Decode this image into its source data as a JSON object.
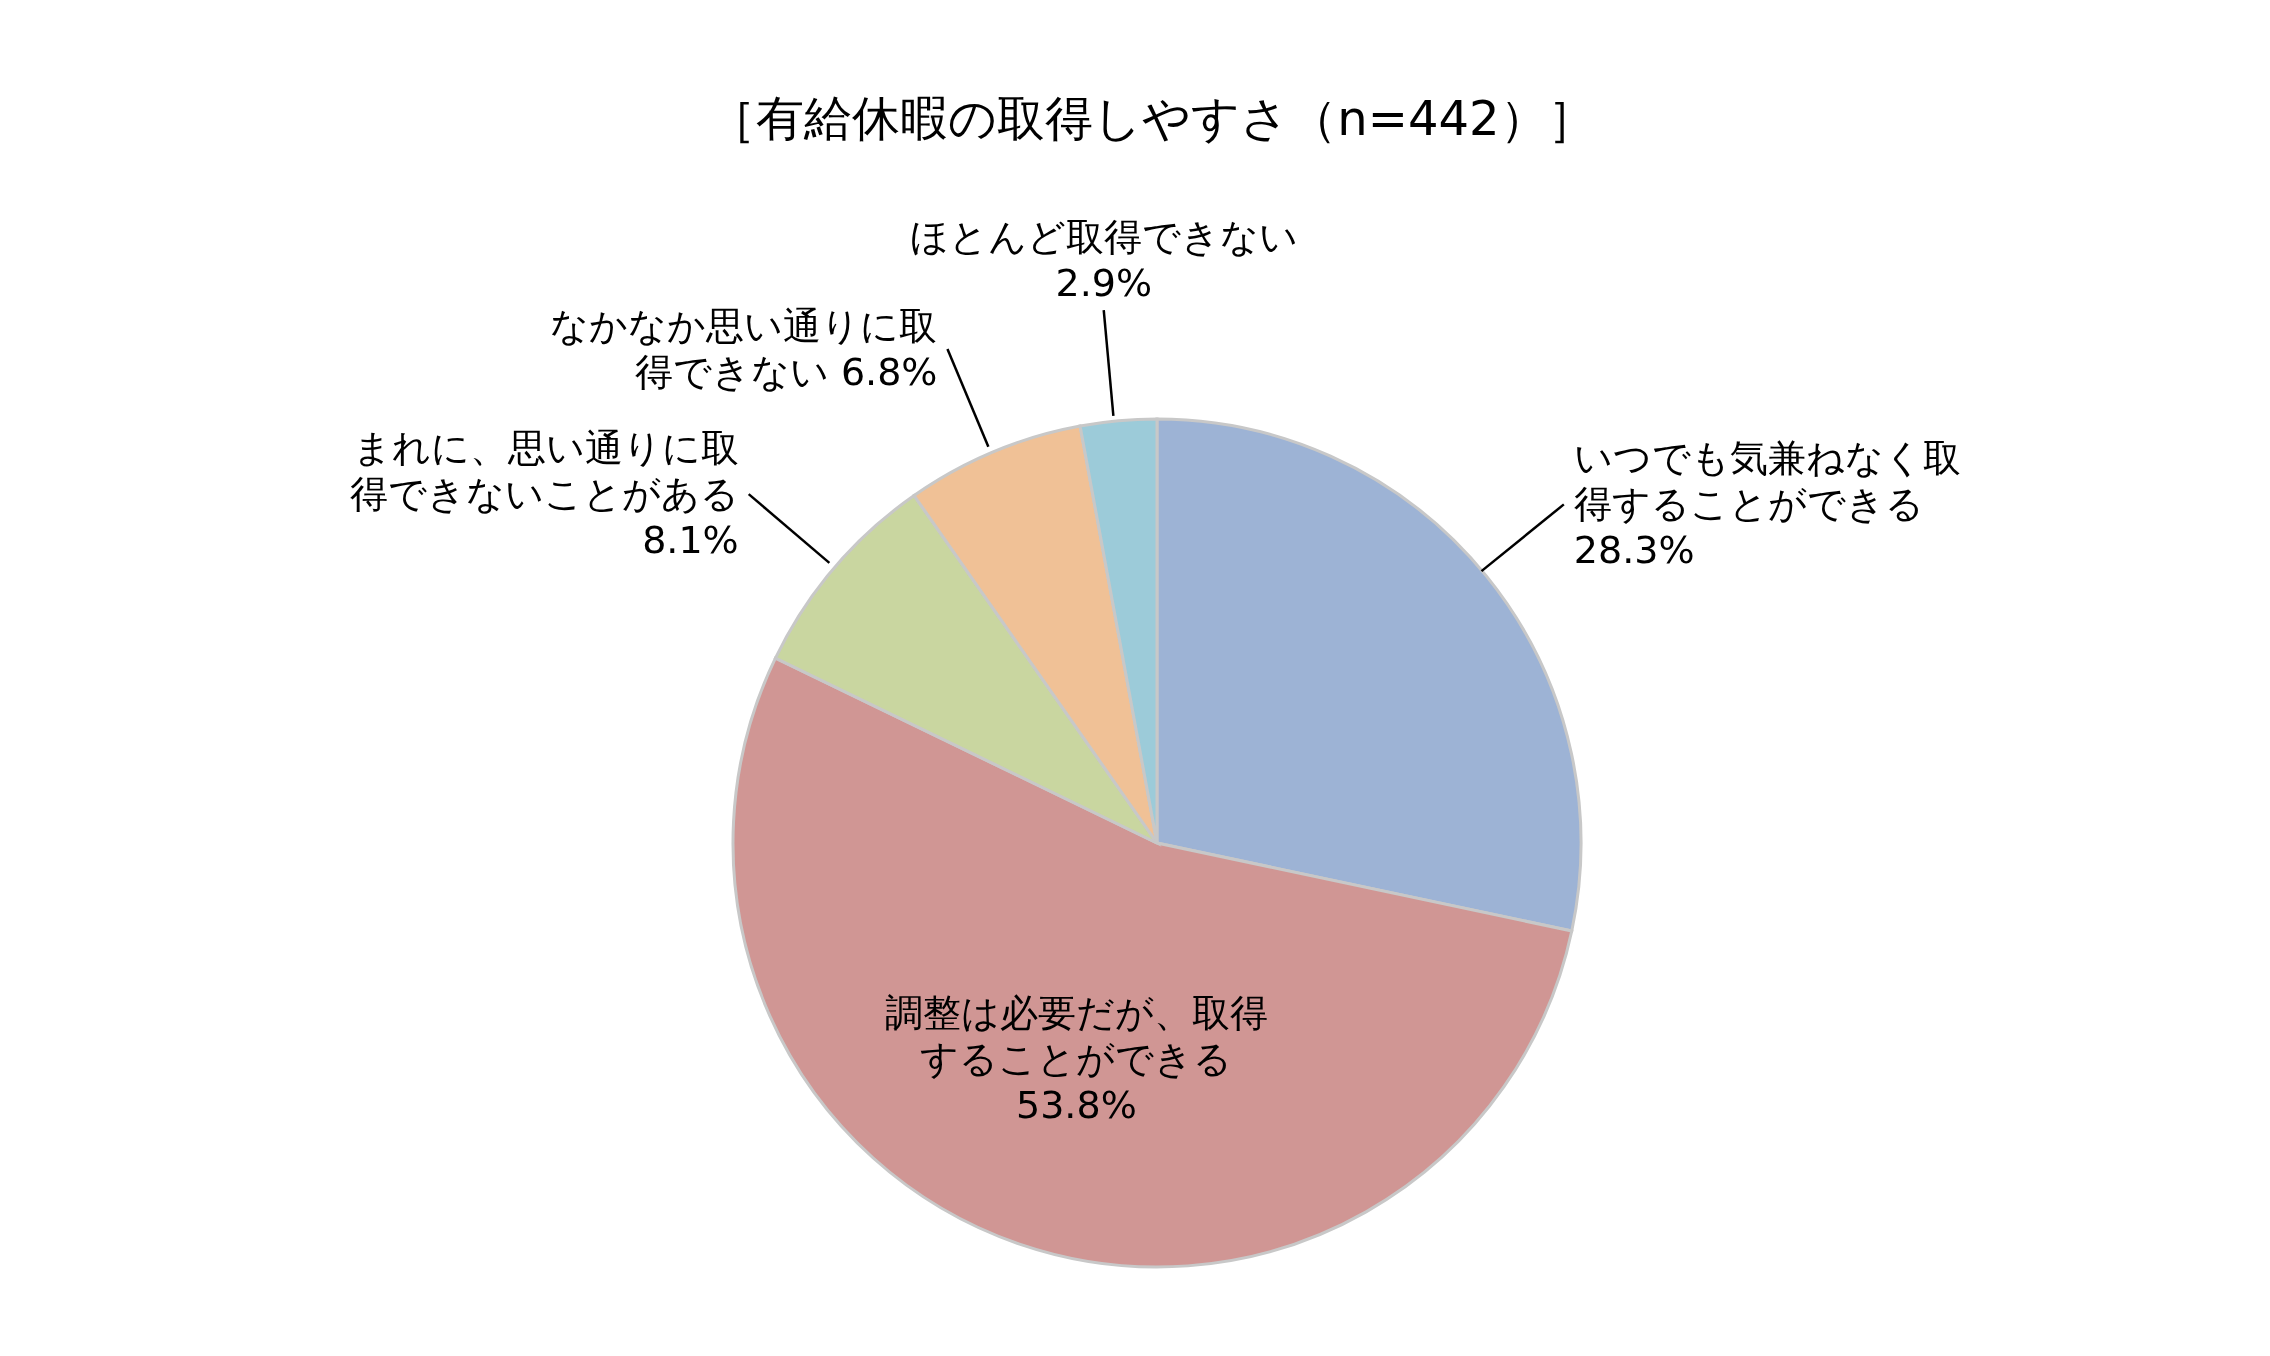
{
  "chart_data": {
    "type": "pie",
    "title": "［有給休暇の取得しやすさ（n=442）］",
    "categories": [
      "いつでも気兼ねなく取得することができる",
      "調整は必要だが、取得することができる",
      "まれに、思い通りに取得できないことがある",
      "なかなか思い通りに取得できない",
      "ほとんど取得できない"
    ],
    "values": [
      28.3,
      53.8,
      8.1,
      6.8,
      2.9
    ],
    "value_labels": [
      "28.3%",
      "53.8%",
      "8.1%",
      "6.8%",
      "2.9%"
    ],
    "colors": [
      "#9db3d5",
      "#d09694",
      "#c9d6a0",
      "#f0c196",
      "#9ccbd9"
    ],
    "legend": false
  }
}
